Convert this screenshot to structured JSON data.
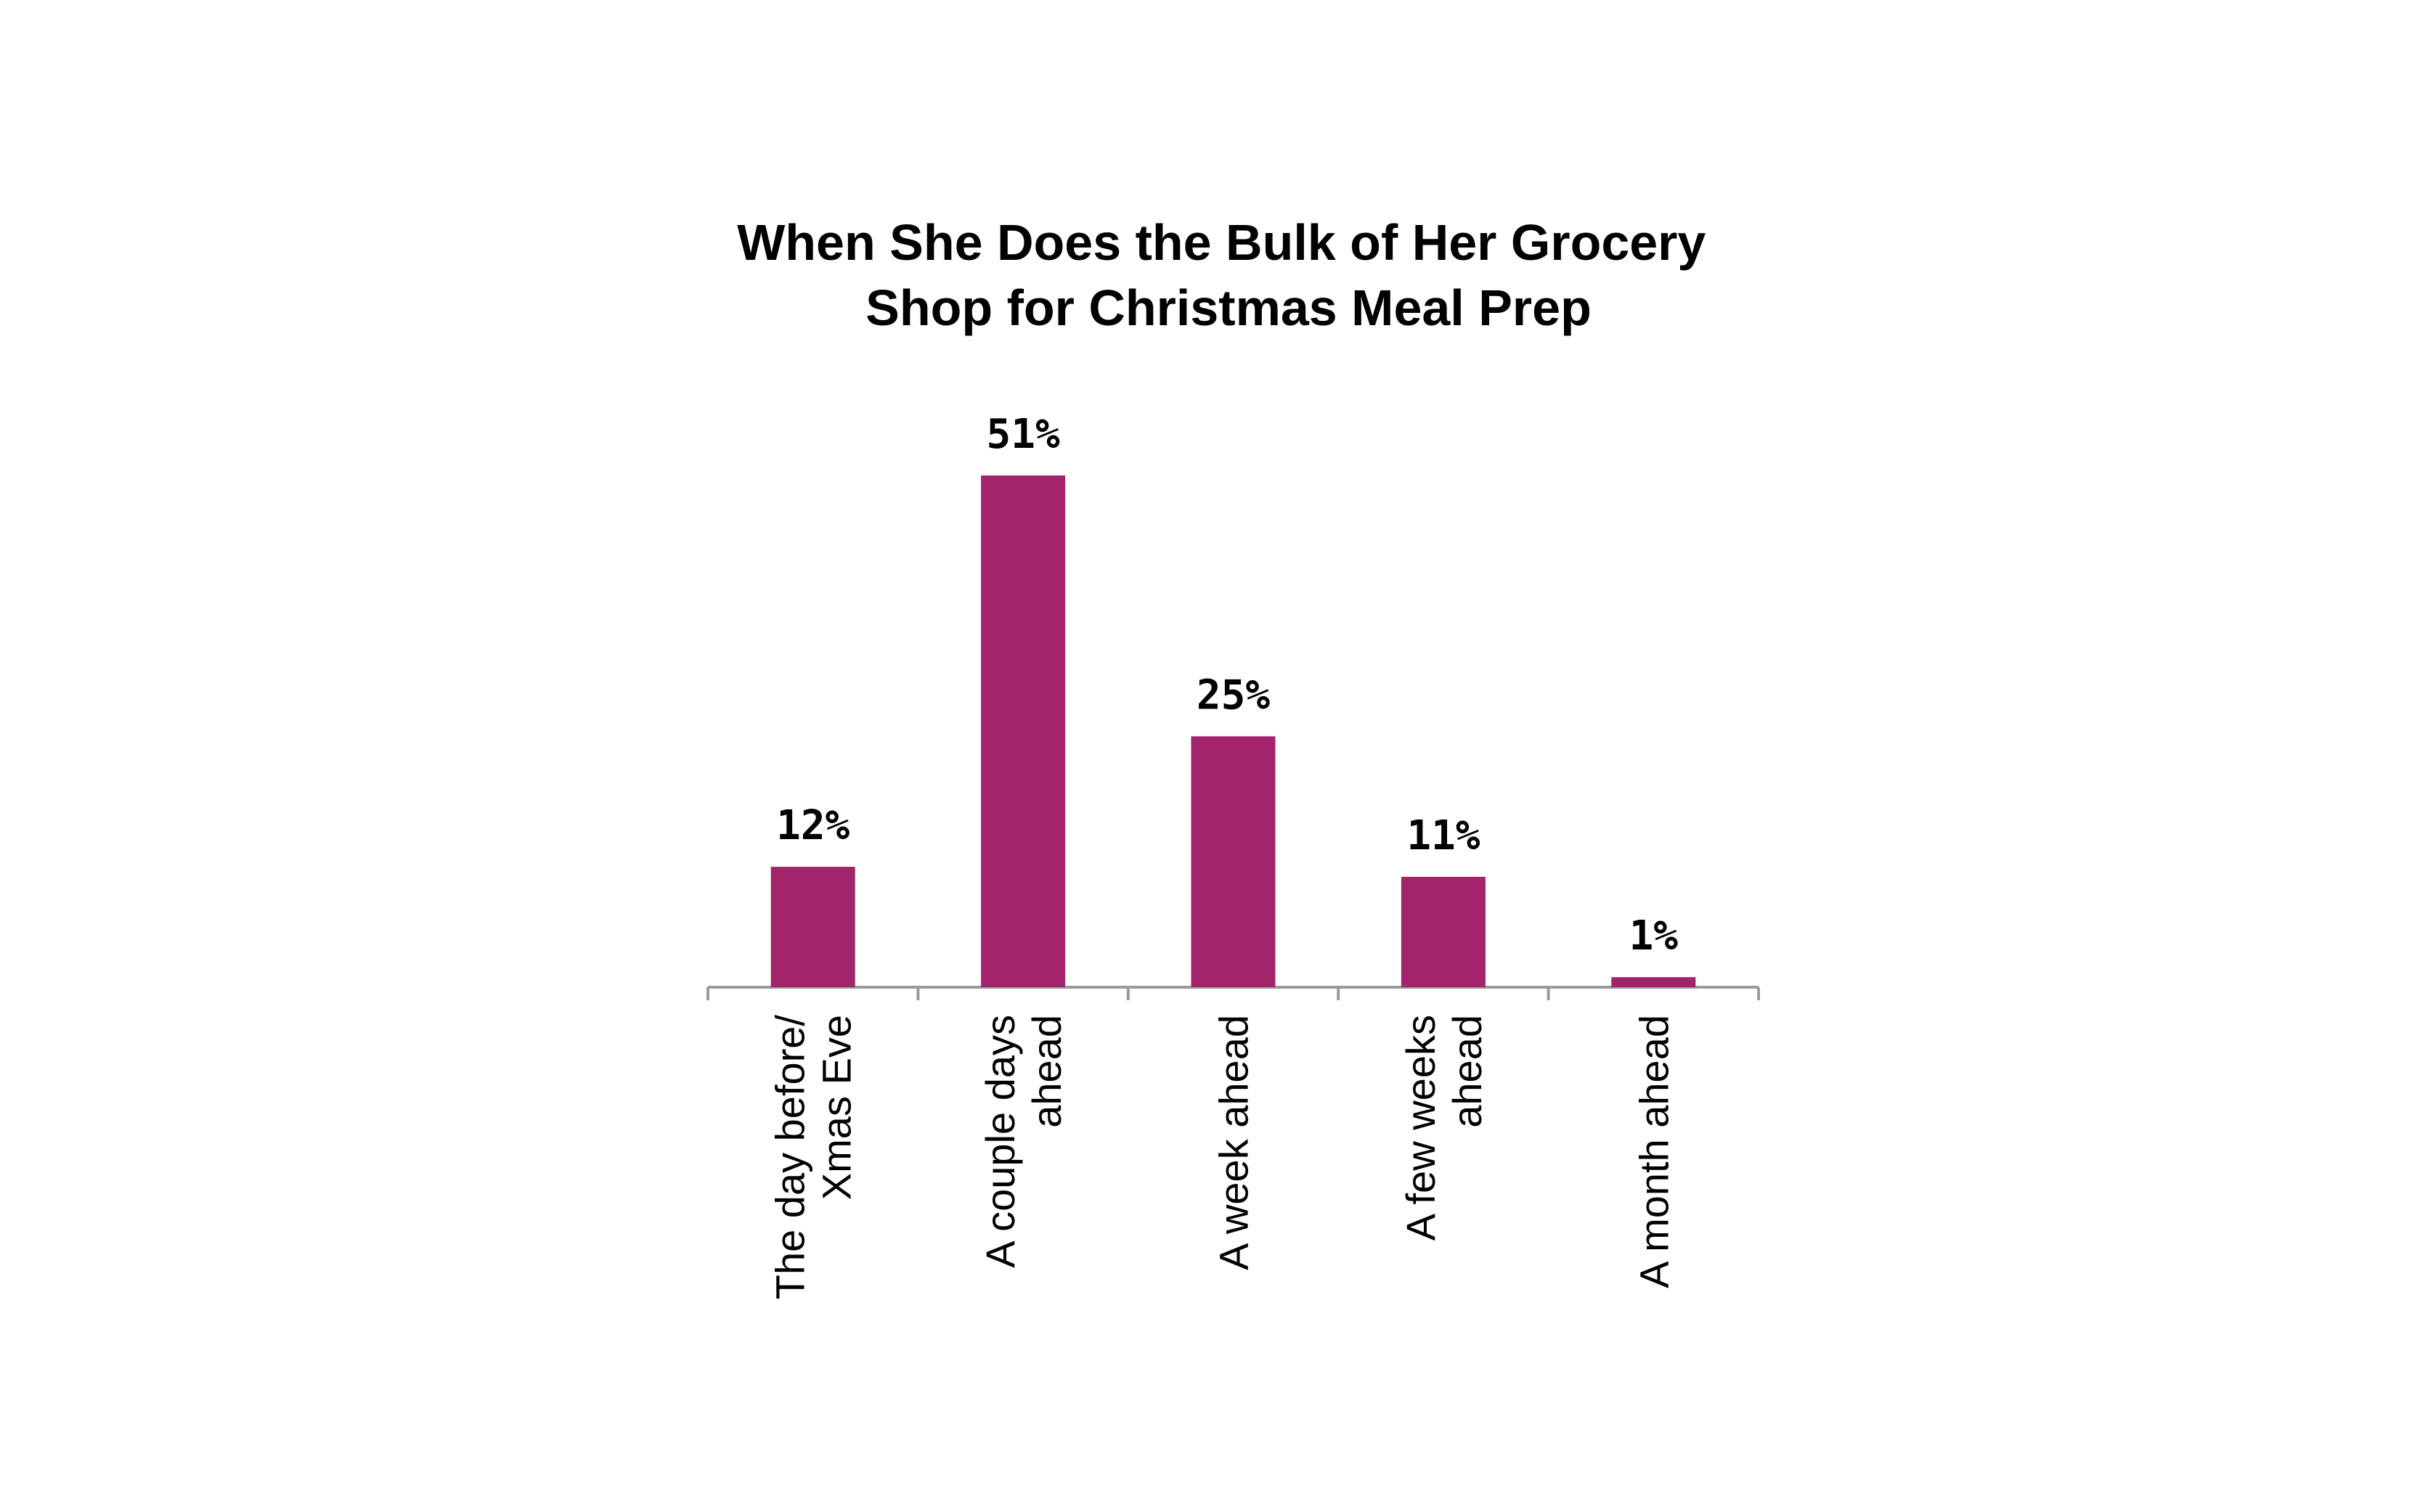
{
  "chart_data": {
    "type": "bar",
    "title": [
      "When She Does the Bulk of Her Grocery",
      "Shop for Christmas Meal Prep"
    ],
    "categories": [
      [
        "The day before/",
        "Xmas Eve"
      ],
      [
        "A couple days",
        "ahead"
      ],
      [
        "A week ahead"
      ],
      [
        "A few weeks",
        "ahead"
      ],
      [
        "A month ahead"
      ]
    ],
    "values": [
      12,
      51,
      25,
      11,
      1
    ],
    "data_labels": [
      "12%",
      "51%",
      "25%",
      "11%",
      "1%"
    ],
    "ylim": [
      0,
      60
    ],
    "bar_color": "#a2246a",
    "axis_color": "#9a9a9a",
    "grid": false,
    "legend": "none"
  }
}
